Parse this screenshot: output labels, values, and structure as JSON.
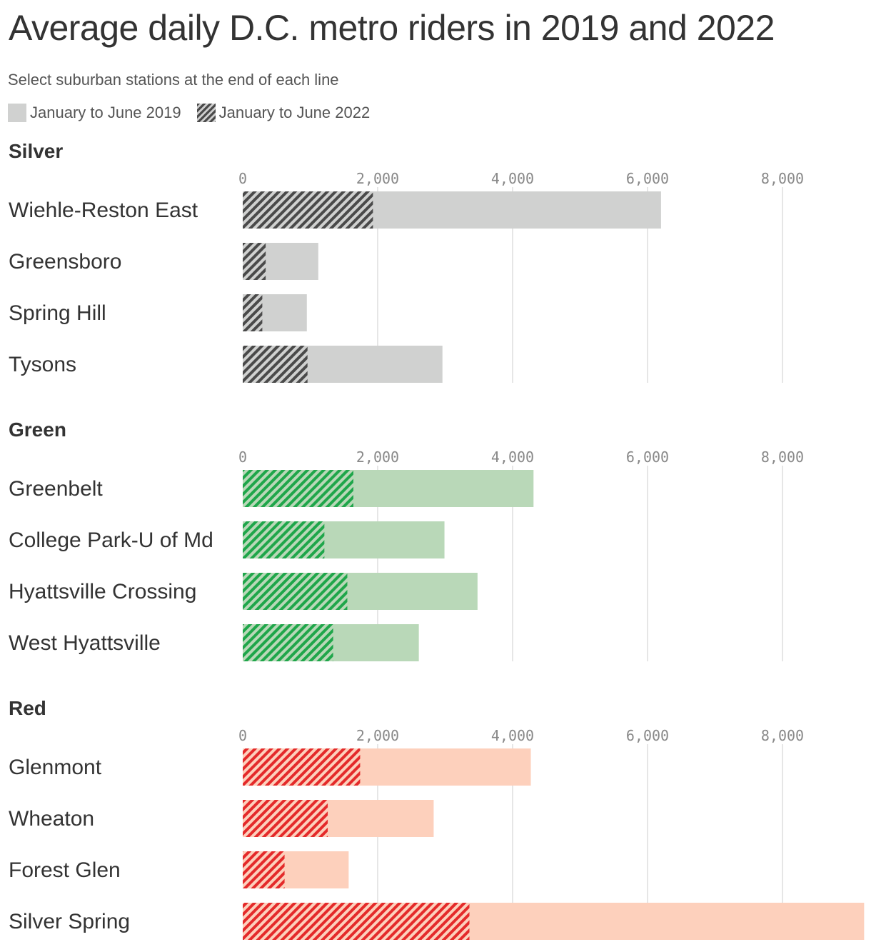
{
  "title": "Average daily D.C. metro riders in 2019 and 2022",
  "subtitle": "Select suburban stations at the end of each line",
  "legend": {
    "series_2019": "January to June 2019",
    "series_2022": "January to June 2022"
  },
  "chart_data": [
    {
      "type": "bar",
      "title": "Silver",
      "categories": [
        "Wiehle-Reston East",
        "Greensboro",
        "Spring Hill",
        "Tysons"
      ],
      "series": [
        {
          "name": "January to June 2019",
          "values": [
            6200,
            1120,
            950,
            2960
          ]
        },
        {
          "name": "January to June 2022",
          "values": [
            1930,
            340,
            290,
            960
          ]
        }
      ],
      "xticks": [
        "0",
        "2,000",
        "4,000",
        "6,000",
        "8,000"
      ],
      "xlim": [
        0,
        9200
      ],
      "colors": {
        "y2019": "#d0d1d0",
        "y2022_dark": "#4a4a4a",
        "y2022_light": "#d0d1d0"
      }
    },
    {
      "type": "bar",
      "title": "Green",
      "categories": [
        "Greenbelt",
        "College Park-U of Md",
        "Hyattsville Crossing",
        "West Hyattsville"
      ],
      "series": [
        {
          "name": "January to June 2019",
          "values": [
            4310,
            2990,
            3480,
            2610
          ]
        },
        {
          "name": "January to June 2022",
          "values": [
            1640,
            1210,
            1550,
            1340
          ]
        }
      ],
      "xticks": [
        "0",
        "2,000",
        "4,000",
        "6,000",
        "8,000"
      ],
      "xlim": [
        0,
        9200
      ],
      "colors": {
        "y2019": "#b9d8b8",
        "y2022_dark": "#1fa64a",
        "y2022_light": "#b9d8b8"
      }
    },
    {
      "type": "bar",
      "title": "Red",
      "categories": [
        "Glenmont",
        "Wheaton",
        "Forest Glen",
        "Silver Spring"
      ],
      "series": [
        {
          "name": "January to June 2019",
          "values": [
            4270,
            2830,
            1570,
            9210
          ]
        },
        {
          "name": "January to June 2022",
          "values": [
            1740,
            1260,
            620,
            3360
          ]
        }
      ],
      "xticks": [
        "0",
        "2,000",
        "4,000",
        "6,000",
        "8,000"
      ],
      "xlim": [
        0,
        9200
      ],
      "colors": {
        "y2019": "#fdd0bc",
        "y2022_dark": "#e42a2a",
        "y2022_light": "#fdd0bc"
      }
    }
  ]
}
